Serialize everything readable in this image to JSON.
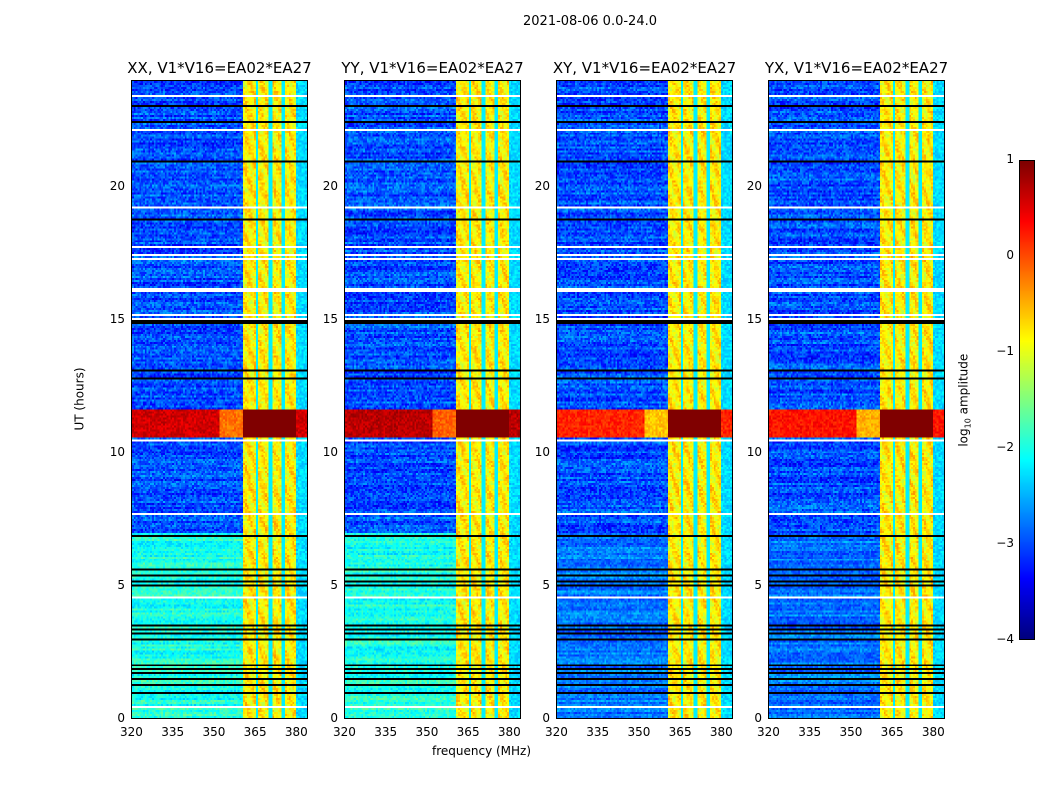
{
  "chart_data": {
    "type": "heatmap",
    "title": "2021-08-06 0.0-24.0",
    "xlabel": "frequency (MHz)",
    "ylabel": "UT (hours)",
    "xlim": [
      320,
      384.4
    ],
    "ylim": [
      0,
      24
    ],
    "xticks": [
      "320",
      "335",
      "350",
      "365",
      "380"
    ],
    "yticks": [
      "0",
      "5",
      "10",
      "15",
      "20"
    ],
    "panels": [
      {
        "title": "XX, V1*V16=EA02*EA27",
        "pol": "XX",
        "low_hours_level": -2.0,
        "event_level": 0.6
      },
      {
        "title": "YY, V1*V16=EA02*EA27",
        "pol": "YY",
        "low_hours_level": -2.0,
        "event_level": 0.7
      },
      {
        "title": "XY, V1*V16=EA02*EA27",
        "pol": "XY",
        "low_hours_level": -2.8,
        "event_level": 0.2
      },
      {
        "title": "YX, V1*V16=EA02*EA27",
        "pol": "YX",
        "low_hours_level": -2.8,
        "event_level": 0.3
      }
    ],
    "background_level": -3.0,
    "rfi_band_mhz": [
      361,
      380.3
    ],
    "rfi_band_level": -0.8,
    "rfi_gaps_mhz": [
      366,
      371,
      375.8
    ],
    "event_hours": [
      10.6,
      11.6
    ],
    "low_hours": [
      0,
      7
    ],
    "flagged_hours_white": [
      0.45,
      4.6,
      7.7,
      10.5,
      15.1,
      15.2,
      16.1,
      16.2,
      17.3,
      17.5,
      17.8,
      19.3,
      22.2,
      23.5
    ],
    "black_hours": [
      0.95,
      1.3,
      1.5,
      1.7,
      1.9,
      2.0,
      3.0,
      3.2,
      3.4,
      3.5,
      5.0,
      5.2,
      5.4,
      5.6,
      6.9,
      12.8,
      13.1,
      14.9,
      15.0,
      18.8,
      21.0,
      22.5,
      23.1
    ],
    "colorbar": {
      "label": "log10 amplitude",
      "label_main": "log",
      "label_sub": "10",
      "label_rest": " amplitude",
      "range": [
        -4,
        1
      ],
      "ticks": [
        "1",
        "0",
        "−1",
        "−2",
        "−3",
        "−4"
      ],
      "colormap": "jet"
    }
  }
}
